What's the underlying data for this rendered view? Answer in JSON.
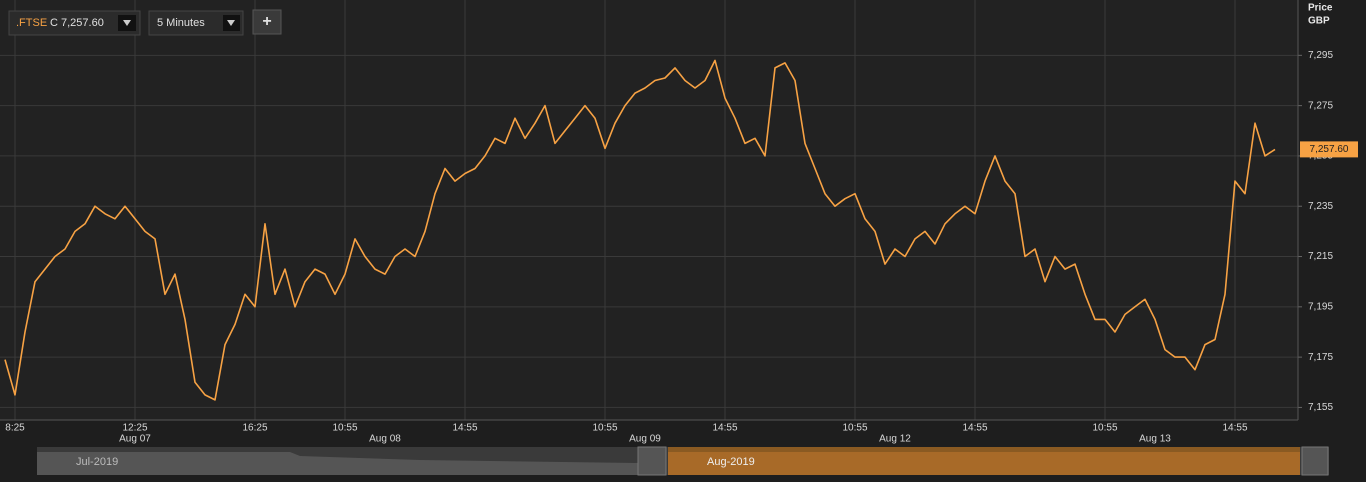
{
  "chart_data": {
    "type": "line",
    "symbol": ".FTSE",
    "close_label": "C 7,257.60",
    "interval": "5 Minutes",
    "add_button": "+",
    "y_axis_title": "Price",
    "y_axis_unit": "GBP",
    "last_price_label": "7,257.60",
    "navigator_labels": [
      "Jul-2019",
      "Aug-2019"
    ],
    "color": "#f7a244",
    "grid": true,
    "ylim": [
      7150,
      7317
    ],
    "yticks": [
      {
        "value": 7155,
        "label": "7,155"
      },
      {
        "value": 7175,
        "label": "7,175"
      },
      {
        "value": 7195,
        "label": "7,195"
      },
      {
        "value": 7215,
        "label": "7,215"
      },
      {
        "value": 7235,
        "label": "7,235"
      },
      {
        "value": 7255,
        "label": "7,255"
      },
      {
        "value": 7275,
        "label": "7,275"
      },
      {
        "value": 7295,
        "label": "7,295"
      }
    ],
    "categories": [
      null,
      "8:25",
      null,
      null,
      null,
      null,
      null,
      null,
      null,
      null,
      null,
      null,
      null,
      "12:25",
      null,
      null,
      null,
      null,
      null,
      null,
      null,
      null,
      null,
      null,
      null,
      "16:25",
      null,
      null,
      null,
      null,
      null,
      null,
      null,
      null,
      "10:55",
      null,
      null,
      null,
      null,
      null,
      null,
      null,
      null,
      null,
      null,
      null,
      "14:55",
      null,
      null,
      null,
      null,
      null,
      null,
      null,
      null,
      null,
      null,
      null,
      null,
      null,
      "10:55",
      null,
      null,
      null,
      null,
      null,
      null,
      null,
      null,
      null,
      null,
      null,
      "14:55",
      null,
      null,
      null,
      null,
      null,
      null,
      null,
      null,
      null,
      null,
      null,
      null,
      "10:55",
      null,
      null,
      null,
      null,
      null,
      null,
      null,
      null,
      null,
      null,
      null,
      "14:55",
      null,
      null,
      null,
      null,
      null,
      null,
      null,
      null,
      null,
      null,
      null,
      null,
      "10:55",
      null,
      null,
      null,
      null,
      null,
      null,
      null,
      null,
      null,
      null,
      null,
      null,
      "14:55",
      null,
      null,
      null,
      null
    ],
    "date_labels": [
      null,
      null,
      null,
      null,
      null,
      null,
      null,
      null,
      null,
      null,
      null,
      null,
      null,
      "Aug 07",
      null,
      null,
      null,
      null,
      null,
      null,
      null,
      null,
      null,
      null,
      null,
      null,
      null,
      null,
      null,
      null,
      null,
      null,
      null,
      null,
      null,
      null,
      null,
      null,
      "Aug 08",
      null,
      null,
      null,
      null,
      null,
      null,
      null,
      null,
      null,
      null,
      null,
      null,
      null,
      null,
      null,
      null,
      null,
      null,
      null,
      null,
      null,
      null,
      null,
      null,
      null,
      "Aug 09",
      null,
      null,
      null,
      null,
      null,
      null,
      null,
      null,
      null,
      null,
      null,
      null,
      null,
      null,
      null,
      null,
      null,
      null,
      null,
      null,
      null,
      null,
      null,
      null,
      "Aug 12",
      null,
      null,
      null,
      null,
      null,
      null,
      null,
      null,
      null,
      null,
      null,
      null,
      null,
      null,
      null,
      null,
      null,
      null,
      null,
      null,
      null,
      null,
      null,
      null,
      null,
      "Aug 13",
      null,
      null,
      null,
      null,
      null,
      null,
      null,
      null,
      null,
      null,
      null,
      null
    ],
    "values": [
      7174,
      7160,
      7185,
      7205,
      7210,
      7215,
      7218,
      7225,
      7228,
      7235,
      7232,
      7230,
      7235,
      7230,
      7225,
      7222,
      7200,
      7208,
      7190,
      7165,
      7160,
      7158,
      7180,
      7188,
      7200,
      7195,
      7228,
      7200,
      7210,
      7195,
      7205,
      7210,
      7208,
      7200,
      7208,
      7222,
      7215,
      7210,
      7208,
      7215,
      7218,
      7215,
      7225,
      7240,
      7250,
      7245,
      7248,
      7250,
      7255,
      7262,
      7260,
      7270,
      7262,
      7268,
      7275,
      7260,
      7265,
      7270,
      7275,
      7270,
      7258,
      7268,
      7275,
      7280,
      7282,
      7285,
      7286,
      7290,
      7285,
      7282,
      7285,
      7293,
      7278,
      7270,
      7260,
      7262,
      7255,
      7290,
      7292,
      7285,
      7260,
      7250,
      7240,
      7235,
      7238,
      7240,
      7230,
      7225,
      7212,
      7218,
      7215,
      7222,
      7225,
      7220,
      7228,
      7232,
      7235,
      7232,
      7245,
      7255,
      7245,
      7240,
      7215,
      7218,
      7205,
      7215,
      7210,
      7212,
      7200,
      7190,
      7190,
      7185,
      7192,
      7195,
      7198,
      7190,
      7178,
      7175,
      7175,
      7170,
      7180,
      7182,
      7200,
      7245,
      7240,
      7268,
      7255,
      7257.6
    ]
  }
}
